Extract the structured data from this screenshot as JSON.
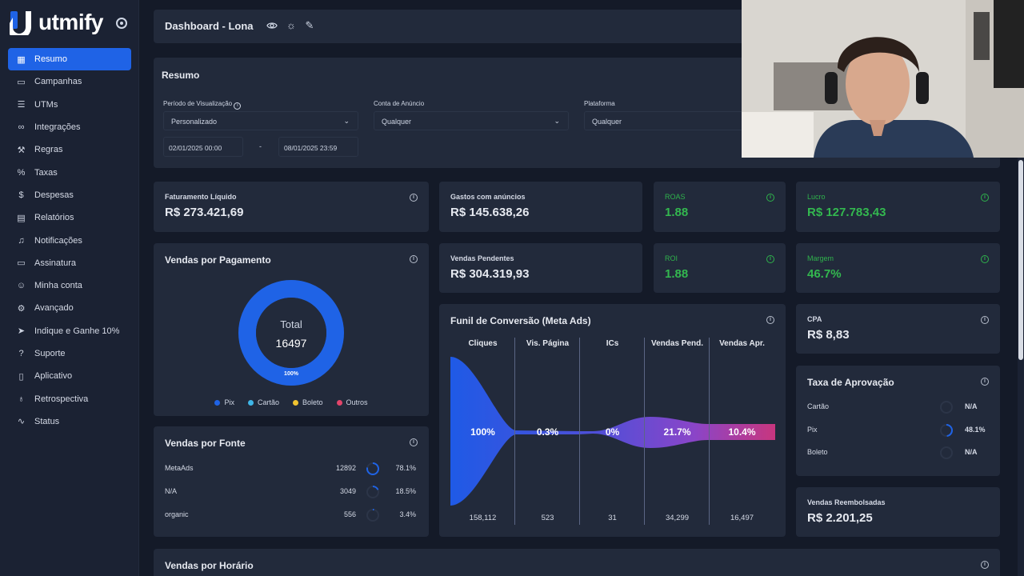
{
  "brand": {
    "name": "utmify"
  },
  "sidebar": {
    "items": [
      {
        "label": "Resumo",
        "icon": "grid-icon",
        "active": true
      },
      {
        "label": "Campanhas",
        "icon": "folder-icon"
      },
      {
        "label": "UTMs",
        "icon": "list-icon"
      },
      {
        "label": "Integrações",
        "icon": "link-icon"
      },
      {
        "label": "Regras",
        "icon": "wrench-icon"
      },
      {
        "label": "Taxas",
        "icon": "percent-icon"
      },
      {
        "label": "Despesas",
        "icon": "dollar-icon"
      },
      {
        "label": "Relatórios",
        "icon": "document-icon"
      },
      {
        "label": "Notificações",
        "icon": "bell-icon"
      },
      {
        "label": "Assinatura",
        "icon": "card-icon"
      },
      {
        "label": "Minha conta",
        "icon": "user-icon"
      },
      {
        "label": "Avançado",
        "icon": "gear-icon"
      },
      {
        "label": "Indique e Ganhe 10%",
        "icon": "send-icon"
      },
      {
        "label": "Suporte",
        "icon": "help-icon"
      },
      {
        "label": "Aplicativo",
        "icon": "phone-icon"
      },
      {
        "label": "Retrospectiva",
        "icon": "award-icon"
      },
      {
        "label": "Status",
        "icon": "activity-icon"
      }
    ]
  },
  "header": {
    "title": "Dashboard - Lona"
  },
  "resumo": {
    "title": "Resumo",
    "periodo_label": "Período de Visualização",
    "periodo_value": "Personalizado",
    "conta_label": "Conta de Anúncio",
    "conta_value": "Qualquer",
    "plataforma_label": "Plataforma",
    "plataforma_value": "Qualquer",
    "date_start": "02/01/2025 00:00",
    "date_sep": "-",
    "date_end": "08/01/2025 23:59"
  },
  "metrics": {
    "faturamento": {
      "label": "Faturamento Líquido",
      "value": "R$ 273.421,69"
    },
    "gastos": {
      "label": "Gastos com anúncios",
      "value": "R$ 145.638,26"
    },
    "roas": {
      "label": "ROAS",
      "value": "1.88"
    },
    "lucro": {
      "label": "Lucro",
      "value": "R$ 127.783,43"
    },
    "pendentes": {
      "label": "Vendas Pendentes",
      "value": "R$ 304.319,93"
    },
    "roi": {
      "label": "ROI",
      "value": "1.88"
    },
    "margem": {
      "label": "Margem",
      "value": "46.7%"
    },
    "cpa": {
      "label": "CPA",
      "value": "R$ 8,83"
    },
    "reembolsadas": {
      "label": "Vendas Reembolsadas",
      "value": "R$ 2.201,25"
    }
  },
  "pagamento": {
    "title": "Vendas por Pagamento",
    "total_label": "Total",
    "total_value": "16497",
    "slice_pct": "100%",
    "pix_share": 1.0,
    "legend": [
      {
        "label": "Pix",
        "color": "#1f63e6"
      },
      {
        "label": "Cartão",
        "color": "#3fb6e8"
      },
      {
        "label": "Boleto",
        "color": "#f0c330"
      },
      {
        "label": "Outros",
        "color": "#e2456a"
      }
    ]
  },
  "fonte": {
    "title": "Vendas por Fonte",
    "rows": [
      {
        "name": "MetaAds",
        "value": "12892",
        "pct": "78.1%",
        "fraction": 0.781
      },
      {
        "name": "N/A",
        "value": "3049",
        "pct": "18.5%",
        "fraction": 0.185
      },
      {
        "name": "organic",
        "value": "556",
        "pct": "3.4%",
        "fraction": 0.034
      }
    ]
  },
  "funil": {
    "title": "Funil de Conversão (Meta Ads)",
    "stages": [
      {
        "label": "Cliques",
        "pct": "100%",
        "count": "158,112"
      },
      {
        "label": "Vis. Página",
        "pct": "0.3%",
        "count": "523"
      },
      {
        "label": "ICs",
        "pct": "0%",
        "count": "31"
      },
      {
        "label": "Vendas Pend.",
        "pct": "21.7%",
        "count": "34,299"
      },
      {
        "label": "Vendas Apr.",
        "pct": "10.4%",
        "count": "16,497"
      }
    ]
  },
  "aprovacao": {
    "title": "Taxa de Aprovação",
    "rows": [
      {
        "name": "Cartão",
        "value": "N/A",
        "fraction": 0
      },
      {
        "name": "Pix",
        "value": "48.1%",
        "fraction": 0.481
      },
      {
        "name": "Boleto",
        "value": "N/A",
        "fraction": 0
      }
    ]
  },
  "horario": {
    "title": "Vendas por Horário"
  },
  "colors": {
    "accent": "#1f63e6",
    "positive": "#33b84f",
    "card": "#222a3b",
    "background": "#141a28"
  }
}
